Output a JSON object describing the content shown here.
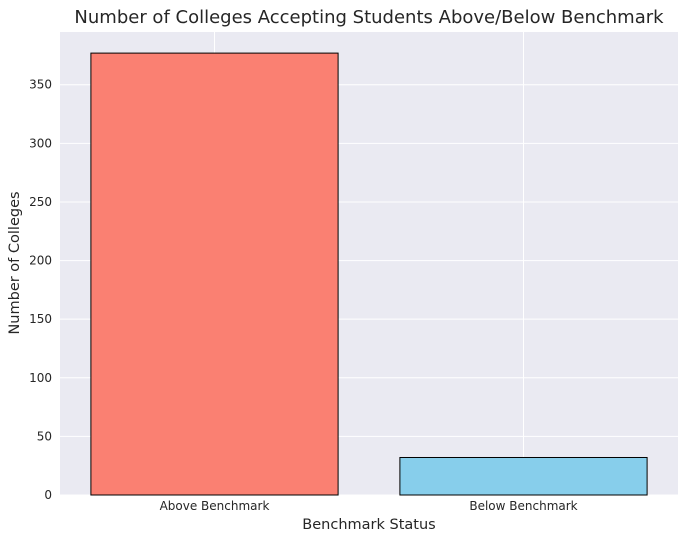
{
  "chart_data": {
    "type": "bar",
    "title": "Number of Colleges Accepting Students Above/Below Benchmark",
    "xlabel": "Benchmark Status",
    "ylabel": "Number of Colleges",
    "categories": [
      "Above Benchmark",
      "Below Benchmark"
    ],
    "values": [
      377,
      32
    ],
    "bar_colors": [
      "#fa8072",
      "#87ceeb"
    ],
    "edge_color": "#000000",
    "ylim": [
      0,
      395
    ],
    "yticks": [
      0,
      50,
      100,
      150,
      200,
      250,
      300,
      350
    ],
    "grid": true,
    "background_color": "#eaeaf2",
    "grid_color": "#ffffff"
  }
}
